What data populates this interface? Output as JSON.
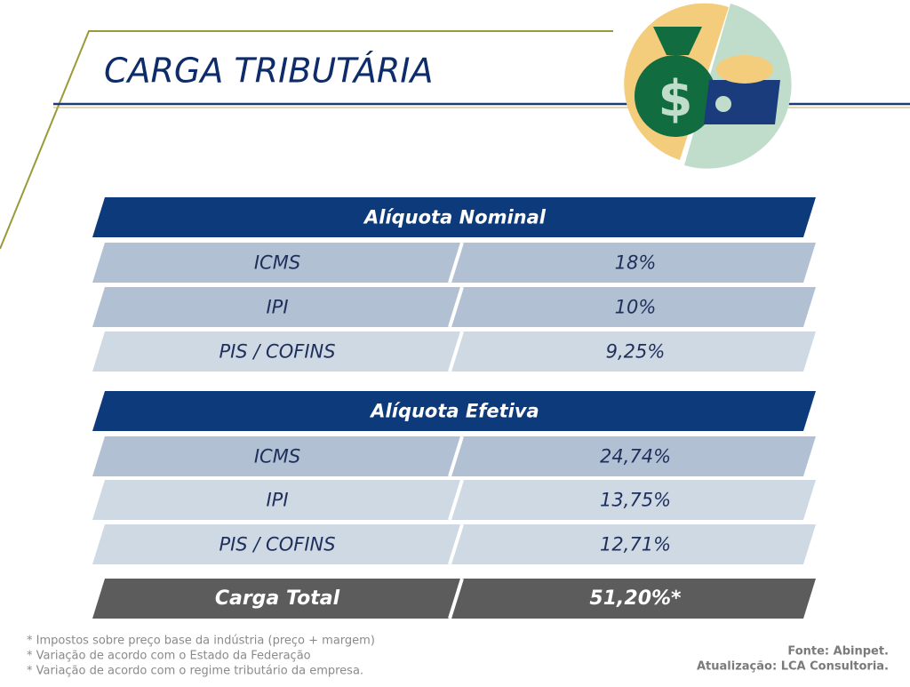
{
  "title": "CARGA TRIBUTÁRIA",
  "sections": [
    {
      "header": "Alíquota Nominal",
      "rows": [
        [
          "ICMS",
          "18%"
        ],
        [
          "IPI",
          "10%"
        ],
        [
          "PIS / COFINS",
          "9,25%"
        ]
      ]
    },
    {
      "header": "Alíquota Efetiva",
      "rows": [
        [
          "ICMS",
          "24,74%"
        ],
        [
          "IPI",
          "13,75%"
        ],
        [
          "PIS / COFINS",
          "12,71%"
        ]
      ]
    }
  ],
  "total": [
    "Carga Total",
    "51,20%*"
  ],
  "notes": [
    "* Impostos sobre preço base da indústria (preço + margem)",
    "* Variação de acordo com o Estado da Federação",
    "* Variação de acordo com o regime tributário da empresa."
  ],
  "source": [
    "Fonte: Abinpet.",
    "Atualização: LCA Consultoria."
  ]
}
